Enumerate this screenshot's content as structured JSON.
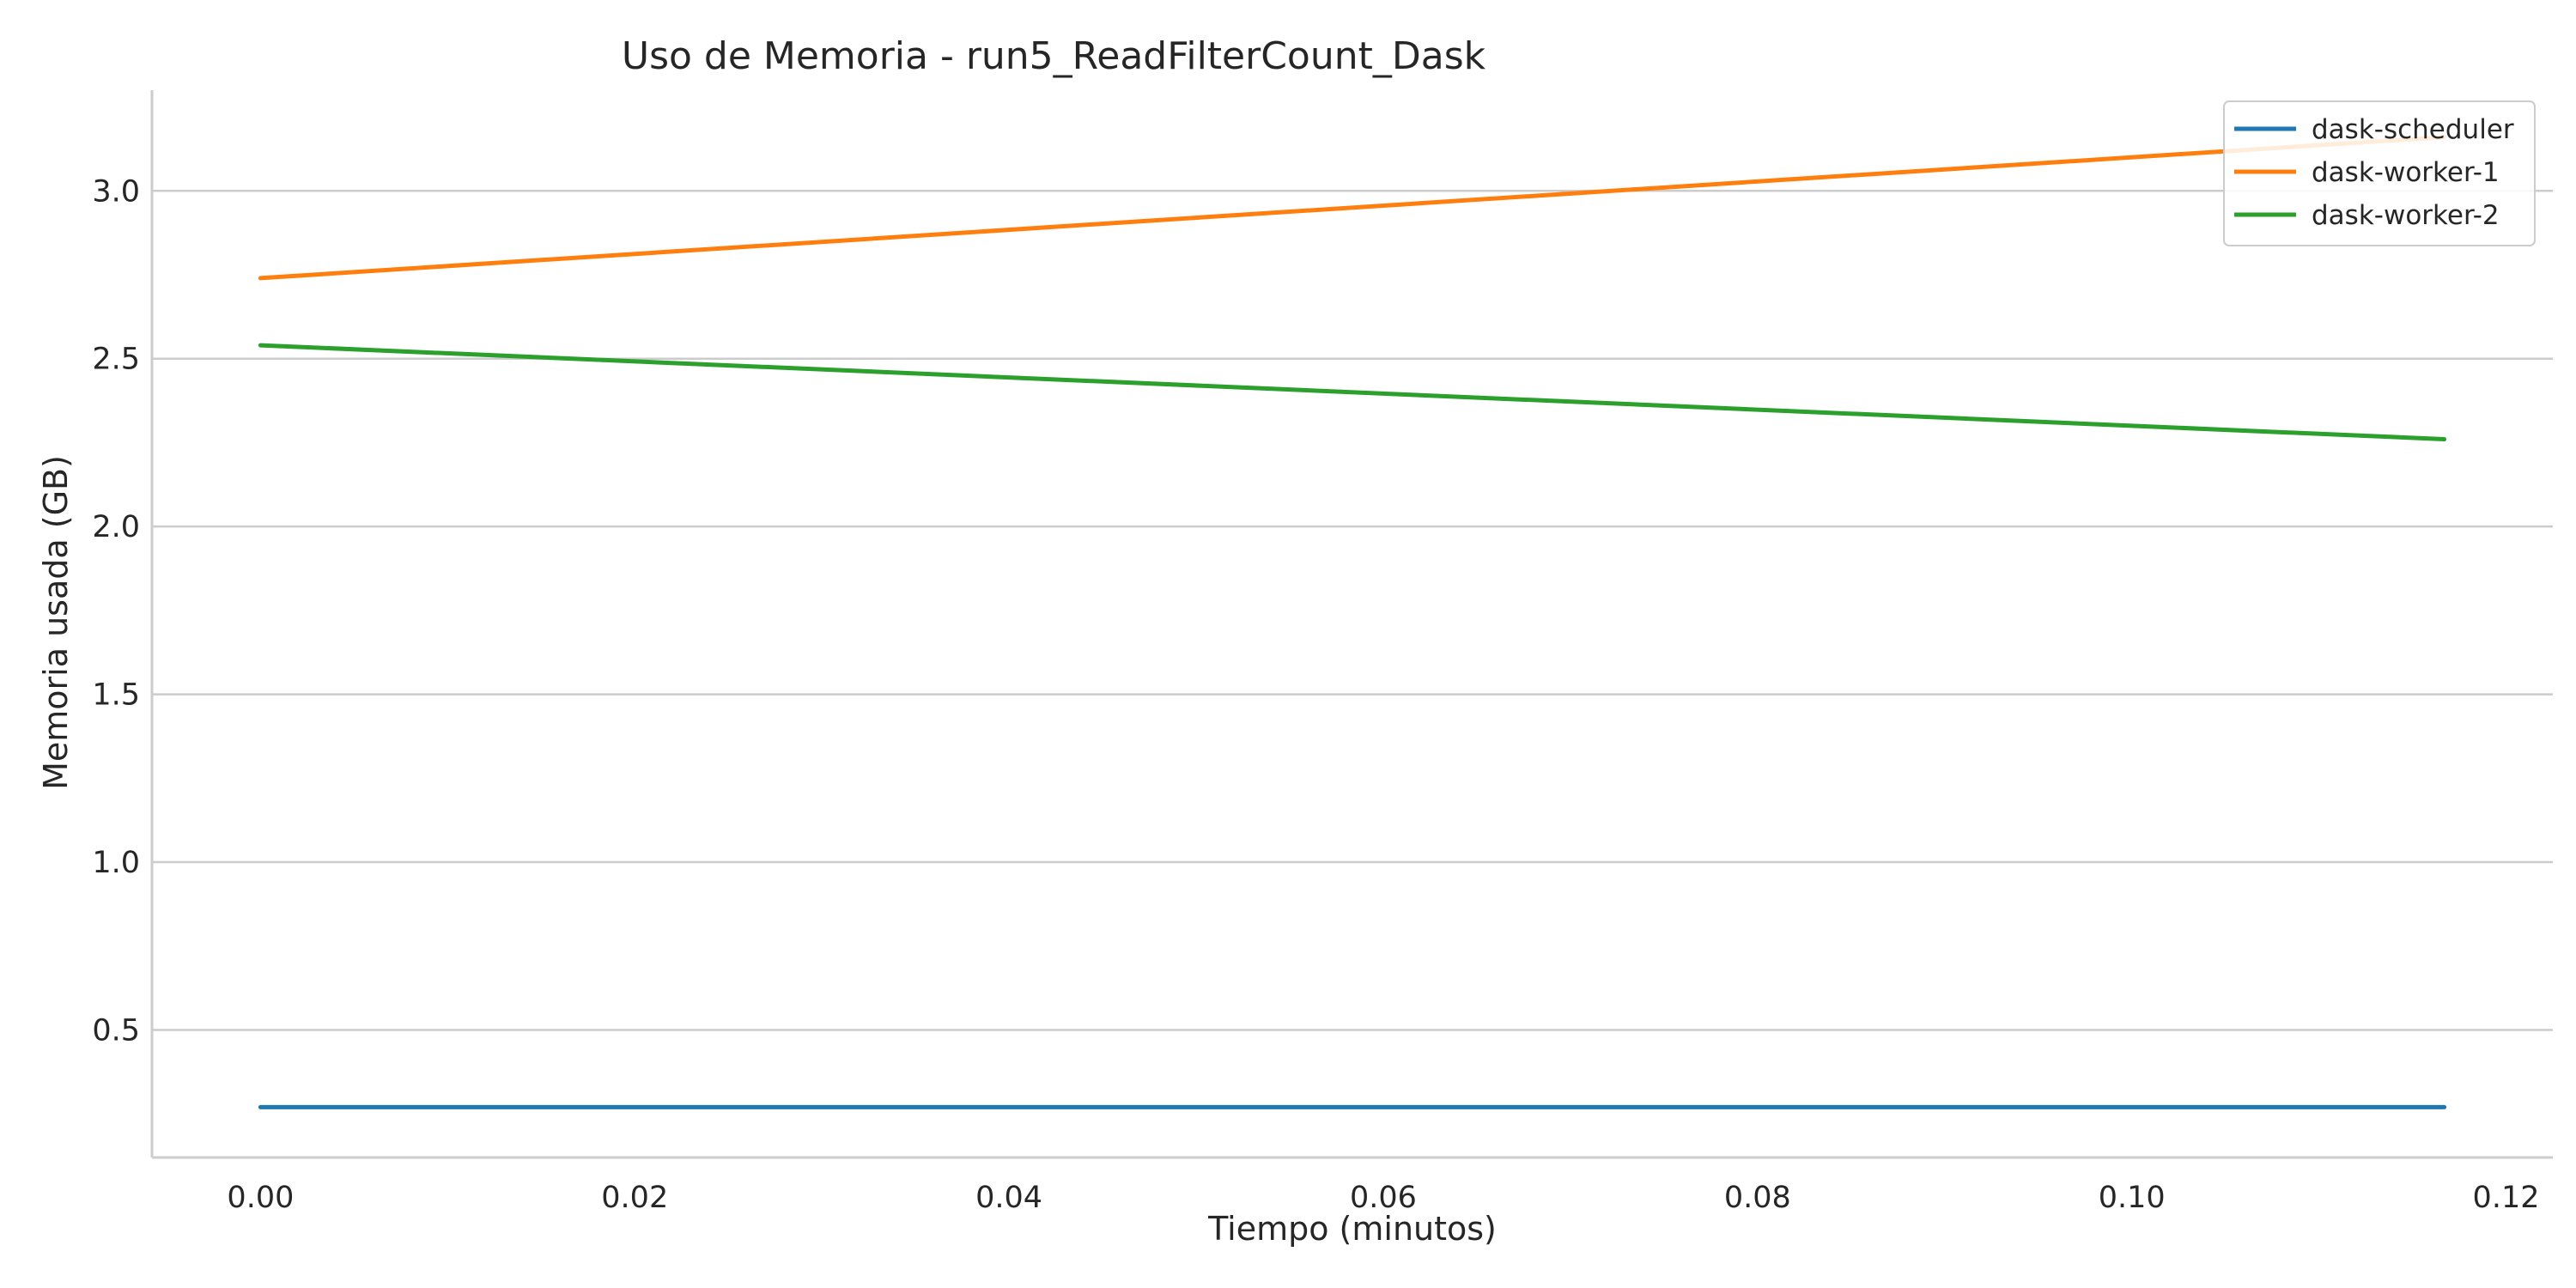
{
  "chart_data": {
    "type": "line",
    "title": "Uso de Memoria - run5_ReadFilterCount_Dask",
    "xlabel": "Tiempo (minutos)",
    "ylabel": "Memoria usada (GB)",
    "xlim": [
      -0.0058,
      0.1225
    ],
    "ylim": [
      0.12,
      3.3
    ],
    "x_ticks": [
      0.0,
      0.02,
      0.04,
      0.06,
      0.08,
      0.1,
      0.12
    ],
    "x_tick_labels": [
      "0.00",
      "0.02",
      "0.04",
      "0.06",
      "0.08",
      "0.10",
      "0.12"
    ],
    "y_ticks": [
      0.5,
      1.0,
      1.5,
      2.0,
      2.5,
      3.0
    ],
    "y_tick_labels": [
      "0.5",
      "1.0",
      "1.5",
      "2.0",
      "2.5",
      "3.0"
    ],
    "grid": "horizontal",
    "legend_position": "top-right",
    "series": [
      {
        "name": "dask-scheduler",
        "color": "#1f77b4",
        "x": [
          0.0,
          0.1167
        ],
        "y": [
          0.27,
          0.27
        ]
      },
      {
        "name": "dask-worker-1",
        "color": "#ff7f0e",
        "x": [
          0.0,
          0.1167
        ],
        "y": [
          2.74,
          3.16
        ]
      },
      {
        "name": "dask-worker-2",
        "color": "#2ca02c",
        "x": [
          0.0,
          0.1167
        ],
        "y": [
          2.54,
          2.26
        ]
      }
    ]
  }
}
